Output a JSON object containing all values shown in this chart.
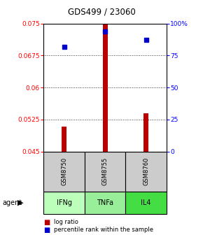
{
  "title": "GDS499 / 23060",
  "samples": [
    "GSM8750",
    "GSM8755",
    "GSM8760"
  ],
  "agents": [
    "IFNg",
    "TNFa",
    "IL4"
  ],
  "log_ratios": [
    0.0508,
    0.0748,
    0.054
  ],
  "percentile_ranks": [
    82,
    94,
    87
  ],
  "ylim_left": [
    0.045,
    0.075
  ],
  "ylim_right": [
    0,
    100
  ],
  "yticks_left": [
    0.045,
    0.0525,
    0.06,
    0.0675,
    0.075
  ],
  "ytick_labels_left": [
    "0.045",
    "0.0525",
    "0.06",
    "0.0675",
    "0.075"
  ],
  "yticks_right": [
    0,
    25,
    50,
    75,
    100
  ],
  "ytick_labels_right": [
    "0",
    "25",
    "50",
    "75",
    "100%"
  ],
  "bar_color": "#bb0000",
  "marker_color": "#0000cc",
  "baseline": 0.045,
  "agent_colors": [
    "#bbffbb",
    "#99ee99",
    "#44dd44"
  ],
  "sample_bg_color": "#cccccc",
  "bar_width": 0.12
}
